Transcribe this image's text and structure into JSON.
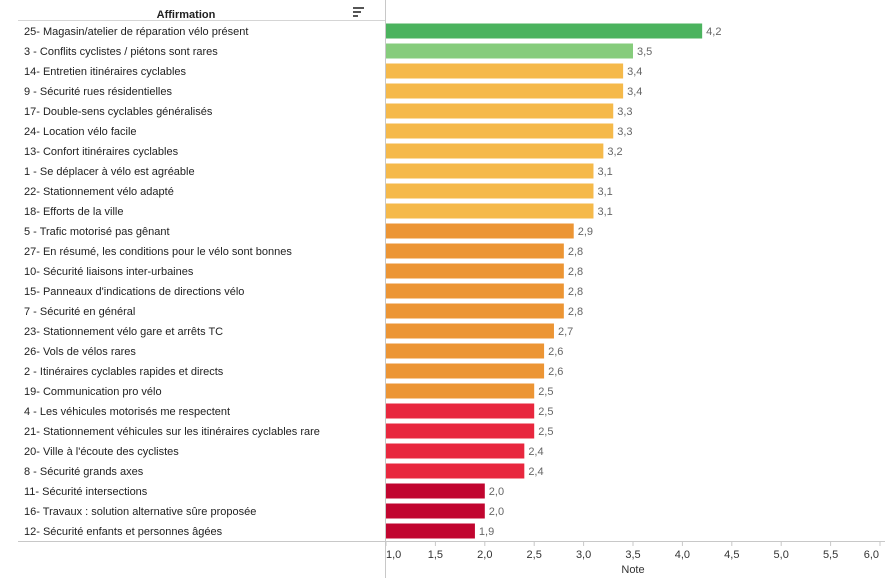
{
  "header": {
    "column_title": "Affirmation",
    "sort_icon": "sort-descending-icon"
  },
  "chart_data": {
    "type": "bar",
    "orientation": "horizontal",
    "xlabel": "Note",
    "xlim": [
      1.0,
      6.0
    ],
    "xticks": [
      "1,0",
      "1,5",
      "2,0",
      "2,5",
      "3,0",
      "3,5",
      "4,0",
      "4,5",
      "5,0",
      "5,5",
      "6,0"
    ],
    "grid": false,
    "rows": [
      {
        "label": "25- Magasin/atelier de réparation vélo présent",
        "value": 4.2,
        "value_label": "4,2",
        "color": "#4bb35e"
      },
      {
        "label": "3 - Conflits cyclistes / piétons sont rares",
        "value": 3.5,
        "value_label": "3,5",
        "color": "#86cc7c"
      },
      {
        "label": "14- Entretien itinéraires cyclables",
        "value": 3.4,
        "value_label": "3,4",
        "color": "#f5b94a"
      },
      {
        "label": "9 - Sécurité rues résidentielles",
        "value": 3.4,
        "value_label": "3,4",
        "color": "#f5b94a"
      },
      {
        "label": "17- Double-sens cyclables généralisés",
        "value": 3.3,
        "value_label": "3,3",
        "color": "#f5b94a"
      },
      {
        "label": "24- Location vélo facile",
        "value": 3.3,
        "value_label": "3,3",
        "color": "#f5b94a"
      },
      {
        "label": "13- Confort itinéraires cyclables",
        "value": 3.2,
        "value_label": "3,2",
        "color": "#f5b94a"
      },
      {
        "label": "1 - Se déplacer à vélo est agréable",
        "value": 3.1,
        "value_label": "3,1",
        "color": "#f5b94a"
      },
      {
        "label": "22- Stationnement vélo adapté",
        "value": 3.1,
        "value_label": "3,1",
        "color": "#f5b94a"
      },
      {
        "label": "18- Efforts de la ville",
        "value": 3.1,
        "value_label": "3,1",
        "color": "#f5b94a"
      },
      {
        "label": "5 - Trafic motorisé pas gênant",
        "value": 2.9,
        "value_label": "2,9",
        "color": "#ec9534"
      },
      {
        "label": "27- En résumé, les conditions pour le vélo sont bonnes",
        "value": 2.8,
        "value_label": "2,8",
        "color": "#ec9534"
      },
      {
        "label": "10- Sécurité liaisons inter-urbaines",
        "value": 2.8,
        "value_label": "2,8",
        "color": "#ec9534"
      },
      {
        "label": "15- Panneaux d'indications de directions vélo",
        "value": 2.8,
        "value_label": "2,8",
        "color": "#ec9534"
      },
      {
        "label": "7 - Sécurité en général",
        "value": 2.8,
        "value_label": "2,8",
        "color": "#ec9534"
      },
      {
        "label": "23- Stationnement vélo gare et arrêts TC",
        "value": 2.7,
        "value_label": "2,7",
        "color": "#ec9534"
      },
      {
        "label": "26- Vols de vélos rares",
        "value": 2.6,
        "value_label": "2,6",
        "color": "#ec9534"
      },
      {
        "label": "2 - Itinéraires cyclables rapides et directs",
        "value": 2.6,
        "value_label": "2,6",
        "color": "#ec9534"
      },
      {
        "label": "19- Communication pro vélo",
        "value": 2.5,
        "value_label": "2,5",
        "color": "#ec9534"
      },
      {
        "label": "4 - Les véhicules motorisés me respectent",
        "value": 2.5,
        "value_label": "2,5",
        "color": "#e8273e"
      },
      {
        "label": "21- Stationnement véhicules sur les itinéraires cyclables rare",
        "value": 2.5,
        "value_label": "2,5",
        "color": "#e8273e"
      },
      {
        "label": "20- Ville à l'écoute des cyclistes",
        "value": 2.4,
        "value_label": "2,4",
        "color": "#e8273e"
      },
      {
        "label": "8 - Sécurité grands axes",
        "value": 2.4,
        "value_label": "2,4",
        "color": "#e8273e"
      },
      {
        "label": "11- Sécurité intersections",
        "value": 2.0,
        "value_label": "2,0",
        "color": "#c1052f"
      },
      {
        "label": "16- Travaux : solution alternative sûre proposée",
        "value": 2.0,
        "value_label": "2,0",
        "color": "#c1052f"
      },
      {
        "label": "12- Sécurité enfants et personnes âgées",
        "value": 1.9,
        "value_label": "1,9",
        "color": "#c1052f"
      }
    ]
  }
}
